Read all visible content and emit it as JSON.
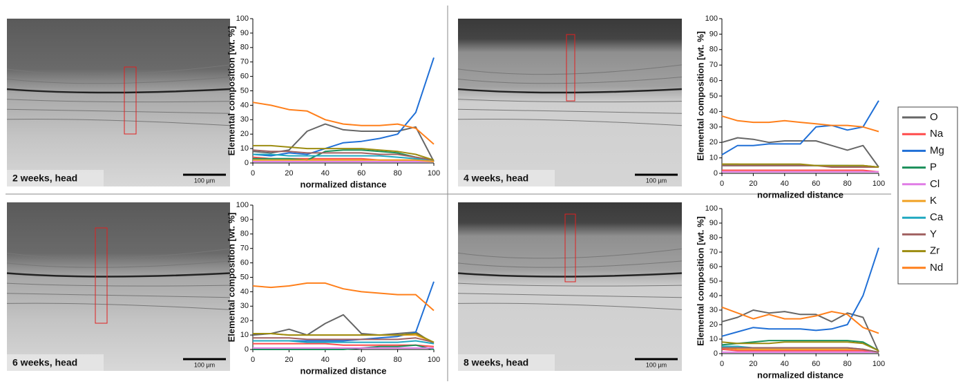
{
  "legend": [
    {
      "name": "O",
      "color": "#666666"
    },
    {
      "name": "Na",
      "color": "#ff4a4a"
    },
    {
      "name": "Mg",
      "color": "#1f6fd6"
    },
    {
      "name": "P",
      "color": "#1a8f5a"
    },
    {
      "name": "Cl",
      "color": "#e07ce6"
    },
    {
      "name": "K",
      "color": "#f0a020"
    },
    {
      "name": "Ca",
      "color": "#20a8c0"
    },
    {
      "name": "Y",
      "color": "#a06060"
    },
    {
      "name": "Zr",
      "color": "#9c8c10"
    },
    {
      "name": "Nd",
      "color": "#ff7f1a"
    }
  ],
  "chart_data": [
    {
      "type": "line",
      "image_label": "2 weeks, head",
      "scale_bar": "100 µm",
      "xlabel": "normalized distance",
      "ylabel": "Elemental composition [wt. %]",
      "x": [
        0,
        10,
        20,
        30,
        40,
        50,
        60,
        70,
        80,
        90,
        100
      ],
      "xlim": [
        0,
        100
      ],
      "xticks": [
        0,
        20,
        40,
        60,
        80,
        100
      ],
      "ylim": [
        0,
        100
      ],
      "yticks": [
        0,
        10,
        20,
        30,
        40,
        50,
        60,
        70,
        80,
        90,
        100
      ],
      "series": [
        {
          "values": [
            8,
            7,
            9,
            22,
            27,
            23,
            22,
            22,
            22,
            25,
            1
          ]
        },
        {
          "values": [
            4,
            3,
            3,
            3,
            3,
            3,
            3,
            2,
            2,
            2,
            1
          ]
        },
        {
          "values": [
            6,
            5,
            7,
            6,
            10,
            14,
            15,
            17,
            20,
            35,
            73
          ]
        },
        {
          "values": [
            3,
            3,
            3,
            2,
            8,
            9,
            9,
            8,
            7,
            4,
            2
          ]
        },
        {
          "values": [
            1,
            1,
            1,
            1,
            1,
            1,
            1,
            1,
            1,
            1,
            1
          ]
        },
        {
          "values": [
            2,
            2,
            2,
            2,
            2,
            2,
            2,
            2,
            2,
            2,
            1
          ]
        },
        {
          "values": [
            6,
            6,
            5,
            5,
            5,
            5,
            5,
            5,
            4,
            3,
            2
          ]
        },
        {
          "values": [
            9,
            8,
            8,
            7,
            7,
            7,
            7,
            6,
            6,
            4,
            2
          ]
        },
        {
          "values": [
            12,
            12,
            11,
            10,
            10,
            10,
            10,
            9,
            8,
            6,
            2
          ]
        },
        {
          "values": [
            42,
            40,
            37,
            36,
            30,
            27,
            26,
            26,
            27,
            24,
            13
          ]
        }
      ]
    },
    {
      "type": "line",
      "image_label": "4 weeks, head",
      "scale_bar": "100 µm",
      "xlabel": "normalized distance",
      "ylabel": "Elemental composition [wt. %]",
      "x": [
        0,
        10,
        20,
        30,
        40,
        50,
        60,
        70,
        80,
        90,
        100
      ],
      "xlim": [
        0,
        100
      ],
      "xticks": [
        0,
        20,
        40,
        60,
        80,
        100
      ],
      "ylim": [
        0,
        100
      ],
      "yticks": [
        0,
        10,
        20,
        30,
        40,
        50,
        60,
        70,
        80,
        90,
        100
      ],
      "series": [
        {
          "values": [
            20,
            23,
            22,
            20,
            21,
            21,
            21,
            18,
            15,
            18,
            4
          ]
        },
        {
          "values": [
            2,
            2,
            2,
            2,
            2,
            2,
            2,
            2,
            2,
            2,
            1
          ]
        },
        {
          "values": [
            12,
            18,
            18,
            19,
            19,
            19,
            30,
            31,
            28,
            30,
            47
          ]
        },
        {
          "values": [
            5,
            5,
            5,
            5,
            5,
            5,
            5,
            5,
            5,
            5,
            4
          ]
        },
        {
          "values": [
            1,
            1,
            1,
            1,
            1,
            1,
            1,
            1,
            1,
            1,
            1
          ]
        },
        {
          "values": [
            6,
            6,
            5,
            5,
            5,
            5,
            5,
            5,
            5,
            5,
            4
          ]
        },
        {
          "values": [
            5,
            5,
            5,
            5,
            5,
            5,
            5,
            5,
            5,
            4,
            4
          ]
        },
        {
          "values": [
            5,
            5,
            5,
            5,
            5,
            5,
            5,
            4,
            4,
            4,
            4
          ]
        },
        {
          "values": [
            6,
            6,
            6,
            6,
            6,
            6,
            5,
            5,
            5,
            5,
            4
          ]
        },
        {
          "values": [
            37,
            34,
            33,
            33,
            34,
            33,
            32,
            31,
            31,
            30,
            27
          ]
        }
      ]
    },
    {
      "type": "line",
      "image_label": "6 weeks, head",
      "scale_bar": "100 µm",
      "xlabel": "normalized distance",
      "ylabel": "Elemental composition [wt. %]",
      "x": [
        0,
        10,
        20,
        30,
        40,
        50,
        60,
        70,
        80,
        90,
        100
      ],
      "xlim": [
        0,
        100
      ],
      "xticks": [
        0,
        20,
        40,
        60,
        80,
        100
      ],
      "ylim": [
        0,
        100
      ],
      "yticks": [
        0,
        10,
        20,
        30,
        40,
        50,
        60,
        70,
        80,
        90,
        100
      ],
      "series": [
        {
          "values": [
            10,
            11,
            14,
            10,
            18,
            24,
            11,
            10,
            11,
            12,
            4
          ]
        },
        {
          "values": [
            4,
            4,
            4,
            4,
            4,
            3,
            3,
            3,
            3,
            3,
            2
          ]
        },
        {
          "values": [
            6,
            6,
            6,
            6,
            6,
            6,
            7,
            8,
            9,
            12,
            47
          ]
        },
        {
          "values": [
            0,
            0,
            0,
            0,
            0,
            0,
            1,
            2,
            2,
            3,
            0
          ]
        },
        {
          "values": [
            1,
            1,
            1,
            1,
            1,
            1,
            1,
            1,
            1,
            1,
            1
          ]
        },
        {
          "values": [
            11,
            11,
            10,
            10,
            10,
            10,
            10,
            10,
            10,
            10,
            5
          ]
        },
        {
          "values": [
            6,
            6,
            6,
            5,
            5,
            5,
            5,
            5,
            5,
            6,
            4
          ]
        },
        {
          "values": [
            8,
            8,
            8,
            7,
            7,
            7,
            7,
            7,
            7,
            8,
            5
          ]
        },
        {
          "values": [
            11,
            11,
            10,
            10,
            10,
            10,
            10,
            10,
            10,
            11,
            5
          ]
        },
        {
          "values": [
            44,
            43,
            44,
            46,
            46,
            42,
            40,
            39,
            38,
            38,
            27
          ]
        }
      ]
    },
    {
      "type": "line",
      "image_label": "8 weeks, head",
      "scale_bar": "100 µm",
      "xlabel": "normalized distance",
      "ylabel": "Elemental composition [wt. %]",
      "x": [
        0,
        10,
        20,
        30,
        40,
        50,
        60,
        70,
        80,
        90,
        100
      ],
      "xlim": [
        0,
        100
      ],
      "xticks": [
        0,
        20,
        40,
        60,
        80,
        100
      ],
      "ylim": [
        0,
        100
      ],
      "yticks": [
        0,
        10,
        20,
        30,
        40,
        50,
        60,
        70,
        80,
        90,
        100
      ],
      "series": [
        {
          "values": [
            22,
            25,
            30,
            28,
            29,
            27,
            27,
            22,
            28,
            25,
            1
          ]
        },
        {
          "values": [
            3,
            2,
            2,
            2,
            2,
            2,
            2,
            2,
            2,
            2,
            1
          ]
        },
        {
          "values": [
            12,
            15,
            18,
            17,
            17,
            17,
            16,
            17,
            20,
            40,
            73
          ]
        },
        {
          "values": [
            6,
            7,
            8,
            9,
            9,
            9,
            9,
            9,
            9,
            8,
            2
          ]
        },
        {
          "values": [
            1,
            1,
            1,
            1,
            1,
            1,
            1,
            1,
            1,
            1,
            1
          ]
        },
        {
          "values": [
            4,
            3,
            3,
            3,
            3,
            3,
            3,
            3,
            3,
            3,
            1
          ]
        },
        {
          "values": [
            5,
            5,
            4,
            4,
            4,
            4,
            4,
            4,
            4,
            3,
            1
          ]
        },
        {
          "values": [
            4,
            4,
            4,
            4,
            4,
            4,
            4,
            4,
            4,
            3,
            1
          ]
        },
        {
          "values": [
            8,
            7,
            7,
            7,
            8,
            8,
            8,
            8,
            8,
            7,
            2
          ]
        },
        {
          "values": [
            32,
            28,
            24,
            27,
            24,
            24,
            26,
            29,
            27,
            18,
            14
          ]
        }
      ]
    }
  ]
}
